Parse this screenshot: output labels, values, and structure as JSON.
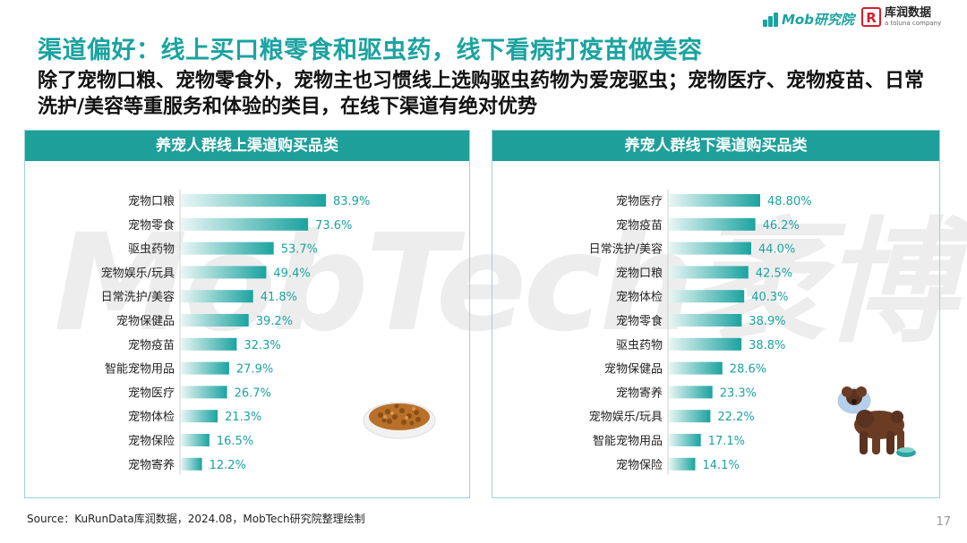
{
  "logos": {
    "mob": "Mob研究院",
    "kurun": "库润数据",
    "kurun_sub": "a toluna company"
  },
  "title": "渠道偏好：线上买口粮零食和驱虫药，线下看病打疫苗做美容",
  "subtitle": "除了宠物口粮、宠物零食外，宠物主也习惯线上选购驱虫药物为爱宠驱虫；宠物医疗、宠物疫苗、日常洗护/美容等重服务和体验的类目，在线下渠道有绝对优势",
  "watermark": "MobTech袤博",
  "source": "Source：KuRunData库润数据，2024.08，MobTech研究院整理绘制",
  "page_number": "17",
  "colors": {
    "accent": "#1ba3a0",
    "header": "#1e9f9a"
  },
  "chart_data": [
    {
      "type": "bar",
      "orientation": "horizontal",
      "title": "养宠人群线上渠道购买品类",
      "categories": [
        "宠物口粮",
        "宠物零食",
        "驱虫药物",
        "宠物娱乐/玩具",
        "日常洗护/美容",
        "宠物保健品",
        "宠物疫苗",
        "智能宠物用品",
        "宠物医疗",
        "宠物体检",
        "宠物保险",
        "宠物寄养"
      ],
      "values": [
        83.9,
        73.6,
        53.7,
        49.4,
        41.8,
        39.2,
        32.3,
        27.9,
        26.7,
        21.3,
        16.5,
        12.2
      ],
      "labels": [
        "83.9%",
        "73.6%",
        "53.7%",
        "49.4%",
        "41.8%",
        "39.2%",
        "32.3%",
        "27.9%",
        "26.7%",
        "21.3%",
        "16.5%",
        "12.2%"
      ],
      "unit": "%"
    },
    {
      "type": "bar",
      "orientation": "horizontal",
      "title": "养宠人群线下渠道购买品类",
      "categories": [
        "宠物医疗",
        "宠物疫苗",
        "日常洗护/美容",
        "宠物口粮",
        "宠物体检",
        "宠物零食",
        "驱虫药物",
        "宠物保健品",
        "宠物寄养",
        "宠物娱乐/玩具",
        "智能宠物用品",
        "宠物保险"
      ],
      "values": [
        48.8,
        46.2,
        44.0,
        42.5,
        40.3,
        38.9,
        38.8,
        28.6,
        23.3,
        22.2,
        17.1,
        14.1
      ],
      "labels": [
        "48.80%",
        "46.2%",
        "44.0%",
        "42.5%",
        "40.3%",
        "38.9%",
        "38.8%",
        "28.6%",
        "23.3%",
        "22.2%",
        "17.1%",
        "14.1%"
      ],
      "unit": "%"
    }
  ]
}
